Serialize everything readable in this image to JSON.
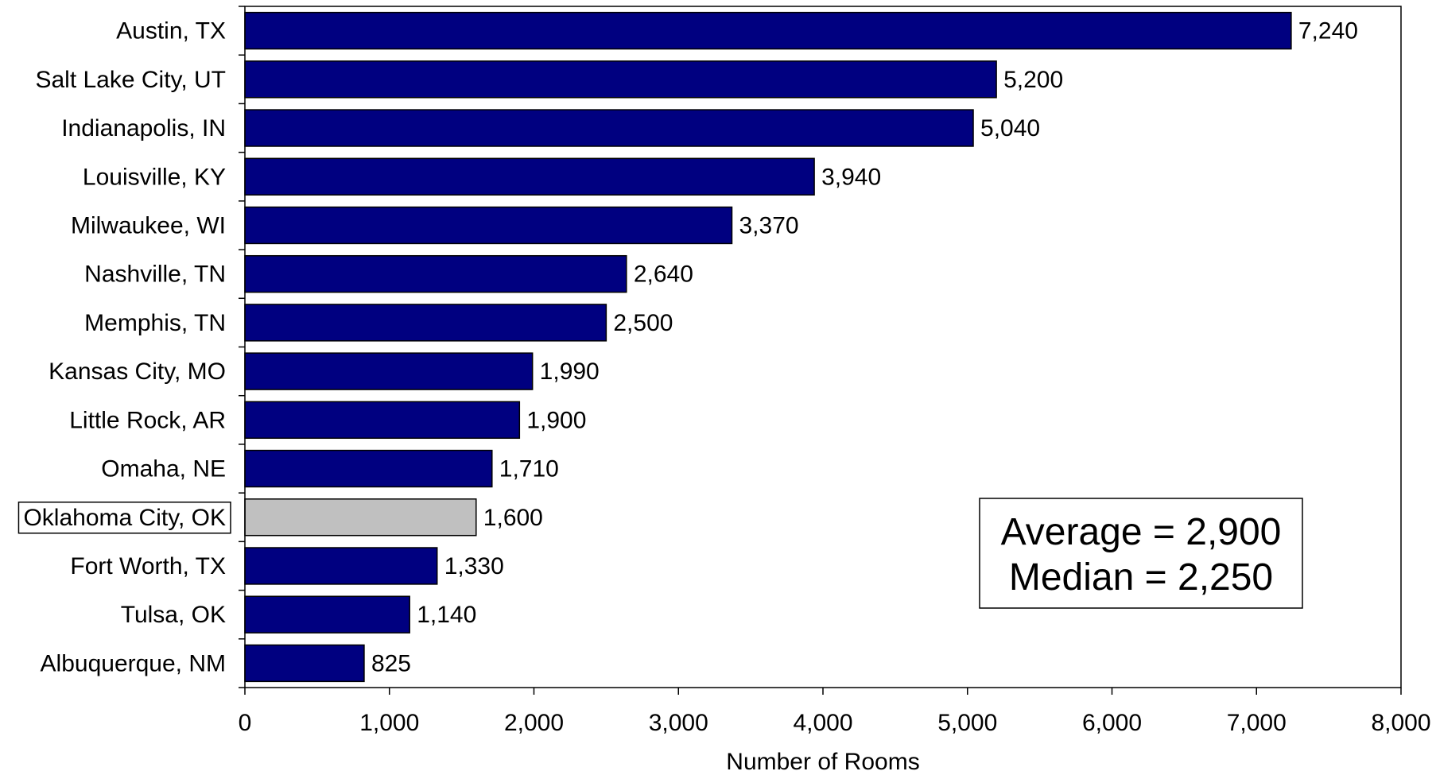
{
  "chart_data": {
    "type": "bar",
    "orientation": "horizontal",
    "categories": [
      "Austin, TX",
      "Salt Lake City, UT",
      "Indianapolis, IN",
      "Louisville, KY",
      "Milwaukee, WI",
      "Nashville, TN",
      "Memphis, TN",
      "Kansas City, MO",
      "Little Rock, AR",
      "Omaha, NE",
      "Oklahoma City, OK",
      "Fort Worth, TX",
      "Tulsa, OK",
      "Albuquerque, NM"
    ],
    "values": [
      7240,
      5200,
      5040,
      3940,
      3370,
      2640,
      2500,
      1990,
      1900,
      1710,
      1600,
      1330,
      1140,
      825
    ],
    "value_labels": [
      "7,240",
      "5,200",
      "5,040",
      "3,940",
      "3,370",
      "2,640",
      "2,500",
      "1,990",
      "1,900",
      "1,710",
      "1,600",
      "1,330",
      "1,140",
      "825"
    ],
    "highlighted_category": "Oklahoma City, OK",
    "xlabel": "Number of Rooms",
    "ylabel": "",
    "xlim": [
      0,
      8000
    ],
    "xticks": [
      0,
      1000,
      2000,
      3000,
      4000,
      5000,
      6000,
      7000,
      8000
    ],
    "xtick_labels": [
      "0",
      "1,000",
      "2,000",
      "3,000",
      "4,000",
      "5,000",
      "6,000",
      "7,000",
      "8,000"
    ],
    "grid": false,
    "annotation": {
      "lines": [
        "Average = 2,900",
        "Median = 2,250"
      ],
      "placement": "bottom-right"
    },
    "colors": {
      "bar": "#000080",
      "highlight_bar": "#C0C0C0",
      "bar_outline": "#000000"
    }
  }
}
